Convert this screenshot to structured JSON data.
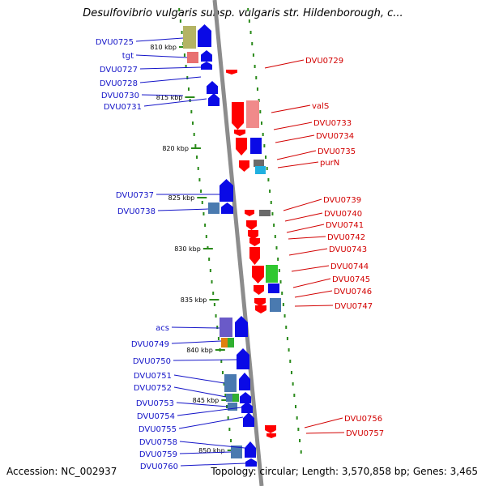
{
  "title": "Desulfovibrio vulgaris subsp. vulgaris str. Hildenborough, c...",
  "footer": {
    "accession": "Accession: NC_002937",
    "topology": "Topology: circular; Length: 3,570,858 bp; Genes: 3,465"
  },
  "colors": {
    "forward_strand": "#1414c8",
    "reverse_strand": "#d20000",
    "backbone": "#8c8c8c",
    "tick_dots": "#2a8a1a"
  },
  "ticks": [
    "810 kbp",
    "815 kbp",
    "820 kbp",
    "825 kbp",
    "830 kbp",
    "835 kbp",
    "840 kbp",
    "845 kbp",
    "850 kbp"
  ],
  "left_labels": [
    "DVU0725",
    "tgt",
    "DVU0727",
    "DVU0728",
    "DVU0730",
    "DVU0731",
    "DVU0737",
    "DVU0738",
    "acs",
    "DVU0749",
    "DVU0750",
    "DVU0751",
    "DVU0752",
    "DVU0753",
    "DVU0754",
    "DVU0755",
    "DVU0758",
    "DVU0759",
    "DVU0760"
  ],
  "right_labels": [
    "DVU0729",
    "valS",
    "DVU0733",
    "DVU0734",
    "DVU0735",
    "purN",
    "DVU0739",
    "DVU0740",
    "DVU0741",
    "DVU0742",
    "DVU0743",
    "DVU0744",
    "DVU0745",
    "DVU0746",
    "DVU0747",
    "DVU0756",
    "DVU0757"
  ]
}
